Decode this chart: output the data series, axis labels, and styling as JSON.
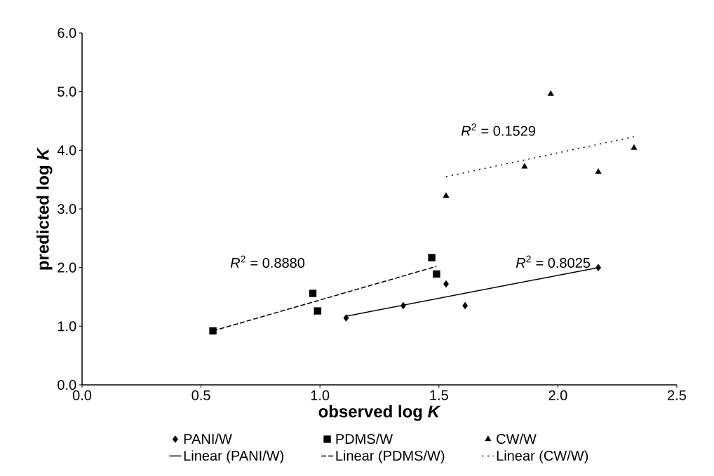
{
  "chart_data": {
    "type": "scatter",
    "xlabel": "observed log *K*",
    "ylabel": "predicted log *K*",
    "xlim": [
      0,
      2.5
    ],
    "ylim": [
      0,
      6
    ],
    "xticks": [
      {
        "value": 0,
        "label": "0.0"
      },
      {
        "value": 0.5,
        "label": "0.5"
      },
      {
        "value": 1,
        "label": "1.0"
      },
      {
        "value": 1.5,
        "label": "1.5"
      },
      {
        "value": 2,
        "label": "2.0"
      },
      {
        "value": 2.5,
        "label": "2.5"
      }
    ],
    "yticks": [
      {
        "value": 0,
        "label": "0.0"
      },
      {
        "value": 1,
        "label": "1.0"
      },
      {
        "value": 2,
        "label": "2.0"
      },
      {
        "value": 3,
        "label": "3.0"
      },
      {
        "value": 4,
        "label": "4.0"
      },
      {
        "value": 5,
        "label": "5.0"
      },
      {
        "value": 6,
        "label": "6.0"
      }
    ],
    "grid": false,
    "legend": "bottom",
    "series": [
      {
        "name": "PANI/W",
        "marker": "diamond",
        "color": "#000000",
        "x": [
          1.11,
          1.35,
          1.53,
          1.61,
          2.17
        ],
        "values": [
          1.14,
          1.35,
          1.72,
          1.35,
          2.0
        ]
      },
      {
        "name": "PDMS/W",
        "marker": "square",
        "color": "#000000",
        "x": [
          0.55,
          0.97,
          0.99,
          1.47,
          1.49
        ],
        "values": [
          0.92,
          1.56,
          1.26,
          2.17,
          1.89
        ]
      },
      {
        "name": "CW/W",
        "marker": "triangle",
        "color": "#000000",
        "x": [
          1.53,
          1.86,
          1.97,
          2.17,
          2.32
        ],
        "values": [
          3.22,
          3.72,
          4.96,
          3.63,
          4.04
        ]
      },
      {
        "name": "Linear (PANI/W)",
        "type": "line",
        "line_style": "solid",
        "color": "#000000",
        "x": [
          1.11,
          2.17
        ],
        "values": [
          1.17,
          2.0
        ]
      },
      {
        "name": "Linear (PDMS/W)",
        "type": "line",
        "line_style": "dashed",
        "color": "#000000",
        "x": [
          0.55,
          1.49
        ],
        "values": [
          0.92,
          2.02
        ]
      },
      {
        "name": "Linear (CW/W)",
        "type": "line",
        "line_style": "dotted",
        "color": "#000000",
        "x": [
          1.53,
          2.32
        ],
        "values": [
          3.55,
          4.23
        ]
      }
    ],
    "annotations": [
      "*R*$^{2}$ = 0.1529",
      "*R*$^{2}$ = 0.8880",
      "*R*$^{2}$ = 0.8025"
    ]
  }
}
